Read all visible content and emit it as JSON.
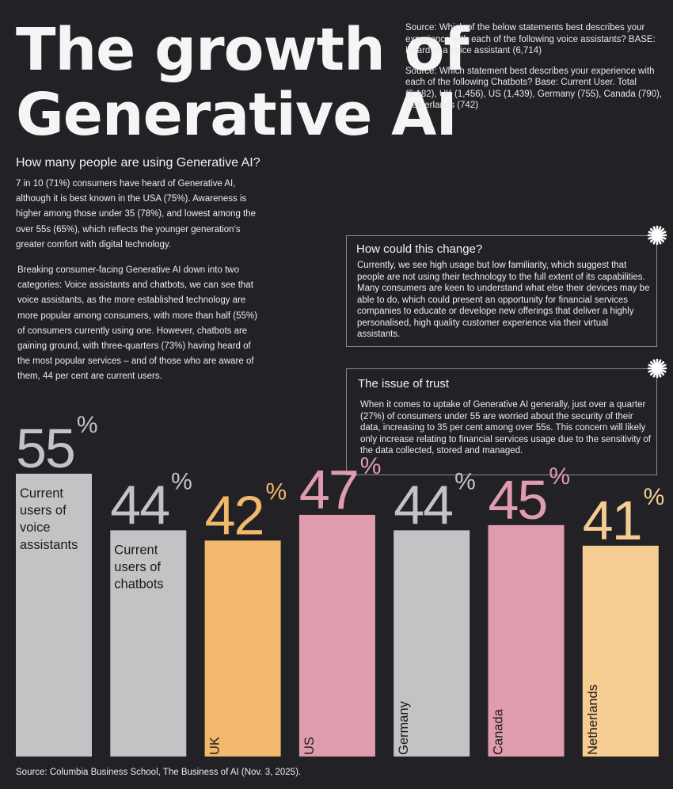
{
  "title": {
    "line1": "The growth of",
    "line2": "Generative AI"
  },
  "sources": {
    "voice": "Source: Which of the below statements best describes your experience with each of the following voice assistants?  BASE: Heard of a voice assistant (6,714)",
    "chatbots": "Source: Which statement best describes your experience with each of the following Chatbots? Base: Current User. Total (5,182), UK (1,456), US (1,439), Germany (755), Canada (790), Netherlands (742)"
  },
  "intro": {
    "question": "How many people are using Generative AI?",
    "paragraph1": "7 in 10 (71%) consumers have heard of Generative AI, although it is best known in the USA (75%). Awareness is higher among those under 35 (78%), and lowest among the over 55s (65%), which reflects the younger generation’s greater comfort with digital technology.",
    "paragraph2": "Breaking consumer-facing Generative AI down into two categories: Voice assistants and chatbots, we can see that voice assistants, as the more established technology are more popular among consumers, with more than half (55%) of consumers currently using one. However, chatbots are gaining ground, with three-quarters (73%) having heard of the most popular services – and of those who are aware of them, 44 per cent are current users."
  },
  "boxes": [
    {
      "title": "How could this change?",
      "text": "Currently, we see high usage but low familiarity, which suggest that people are not using their technology to the full extent of its capabilities. Many consumers are keen to understand what else their devices may be able to  do, which could present an opportunity for financial services companies to educate or develope new offerings that deliver a highly personalised, high quality customer experience via their virtual assistants."
    },
    {
      "title": "The issue of trust",
      "text": "When it comes to uptake of Generative AI generally, just over a quarter (27%) of consumers under 55 are worried about the security of their data, increasing to 35 per cent among over 55s. This concern will likely only increase relating to financial services usage due to the sensitivity of the data  collected, stored and managed."
    }
  ],
  "chart_data": {
    "type": "bar",
    "unit": "%",
    "ylim": [
      0,
      55
    ],
    "categories": [
      "Current users of voice assistants",
      "Current users of chatbots",
      "UK",
      "US",
      "Germany",
      "Canada",
      "Netherlands"
    ],
    "values": [
      55,
      44,
      42,
      47,
      44,
      45,
      41
    ],
    "label_style": [
      "horizontal",
      "horizontal",
      "vertical",
      "vertical",
      "vertical",
      "vertical",
      "vertical"
    ],
    "colors": [
      "#c3c3c6",
      "#c3c3c6",
      "#f2b86c",
      "#e09caf",
      "#c3c3c6",
      "#e09caf",
      "#f5cc92"
    ]
  },
  "footer": "Source: Columbia Business School, The Business of AI (Nov. 3, 2025)."
}
